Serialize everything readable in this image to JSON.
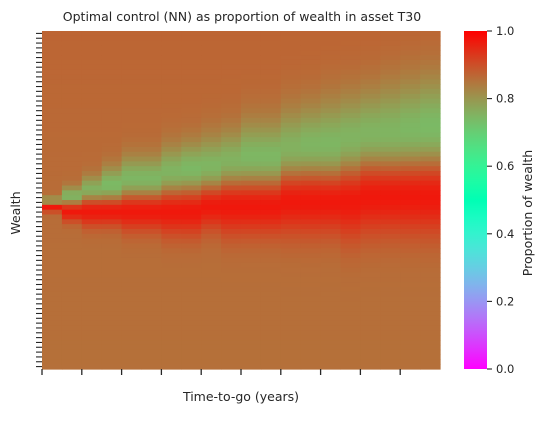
{
  "chart_data": {
    "type": "heatmap",
    "title": "Optimal control (NN) as proportion of wealth in asset T30",
    "xlabel": "Time-to-go (years)",
    "ylabel": "Wealth",
    "colorbar": {
      "label": "Proportion of wealth",
      "colormap": "rainbow",
      "vmin": 0.0,
      "vmax": 1.0,
      "ticks": [
        "0.0",
        "0.2",
        "0.4",
        "0.6",
        "0.8",
        "1.0"
      ]
    },
    "x_tick_labels_shown": false,
    "y_tick_labels_shown": false,
    "n_time_columns": 20,
    "n_wealth_rows": 70,
    "wealth_row_order": "top_is_highest",
    "time_column_order": "left_to_right",
    "regions": {
      "upper_high_wealth_value": 0.87,
      "yellow_band_value": 0.73,
      "red_band_value": 0.97,
      "lower_low_wealth_value": 0.86
    },
    "band_centre_row_by_column": [
      35,
      34,
      33,
      32,
      31,
      31,
      30,
      29,
      29,
      28,
      27,
      27,
      26,
      25,
      25,
      24,
      23,
      23,
      22,
      21
    ],
    "band_width_rows_by_column": [
      1,
      2,
      3,
      4,
      5,
      5,
      6,
      6,
      7,
      7,
      8,
      8,
      9,
      9,
      10,
      10,
      10,
      11,
      11,
      11
    ],
    "red_band_centre_row_by_column": [
      36,
      37,
      37,
      37,
      37,
      37,
      37,
      37,
      36,
      36,
      36,
      36,
      35,
      35,
      35,
      35,
      34,
      34,
      34,
      34
    ],
    "red_band_width_rows_by_column": [
      1,
      2,
      3,
      3,
      4,
      4,
      5,
      5,
      5,
      6,
      6,
      6,
      7,
      7,
      7,
      8,
      8,
      8,
      8,
      8
    ]
  }
}
